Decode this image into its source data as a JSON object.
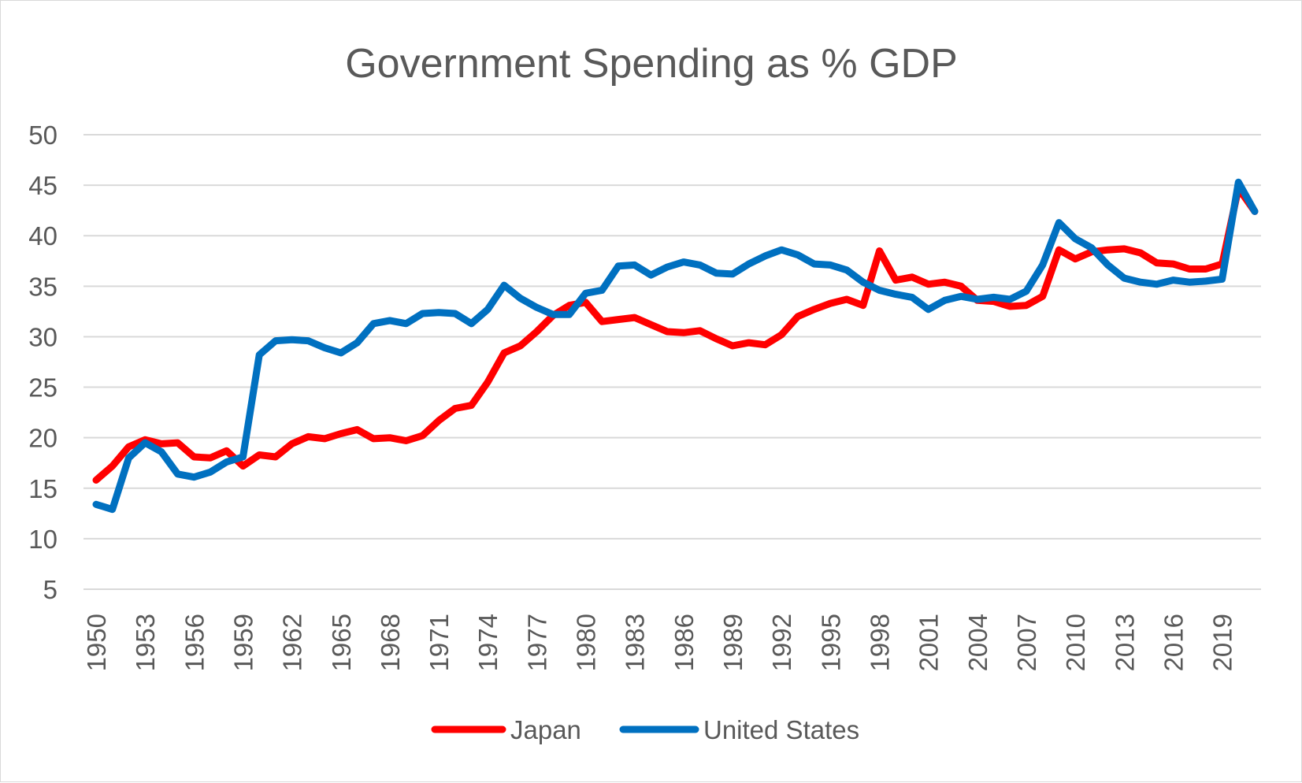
{
  "chart_data": {
    "type": "line",
    "title": "Government Spending as % GDP",
    "xlabel": "",
    "ylabel": "",
    "ylim": [
      5,
      50
    ],
    "y_ticks": [
      5,
      10,
      15,
      20,
      25,
      30,
      35,
      40,
      45,
      50
    ],
    "x_tick_labels": [
      "1950",
      "1953",
      "1956",
      "1959",
      "1962",
      "1965",
      "1968",
      "1971",
      "1974",
      "1977",
      "1980",
      "1983",
      "1986",
      "1989",
      "1992",
      "1995",
      "1998",
      "2001",
      "2004",
      "2007",
      "2010",
      "2013",
      "2016",
      "2019"
    ],
    "grid": "horizontal",
    "legend_position": "bottom",
    "x": [
      1950,
      1951,
      1952,
      1953,
      1954,
      1955,
      1956,
      1957,
      1958,
      1959,
      1960,
      1961,
      1962,
      1963,
      1964,
      1965,
      1966,
      1967,
      1968,
      1969,
      1970,
      1971,
      1972,
      1973,
      1974,
      1975,
      1976,
      1977,
      1978,
      1979,
      1980,
      1981,
      1982,
      1983,
      1984,
      1985,
      1986,
      1987,
      1988,
      1989,
      1990,
      1991,
      1992,
      1993,
      1994,
      1995,
      1996,
      1997,
      1998,
      1999,
      2000,
      2001,
      2002,
      2003,
      2004,
      2005,
      2006,
      2007,
      2008,
      2009,
      2010,
      2011,
      2012,
      2013,
      2014,
      2015,
      2016,
      2017,
      2018,
      2019,
      2020,
      2021
    ],
    "series": [
      {
        "name": "Japan",
        "color": "#ff0000",
        "values": [
          15.8,
          17.2,
          19.1,
          19.8,
          19.4,
          19.5,
          18.1,
          18.0,
          18.7,
          17.2,
          18.3,
          18.1,
          19.4,
          20.1,
          19.9,
          20.4,
          20.8,
          19.9,
          20.0,
          19.7,
          20.2,
          21.7,
          22.9,
          23.2,
          25.5,
          28.4,
          29.1,
          30.5,
          32.1,
          33.1,
          33.4,
          31.5,
          31.7,
          31.9,
          31.2,
          30.5,
          30.4,
          30.6,
          29.8,
          29.1,
          29.4,
          29.2,
          30.2,
          32.0,
          32.7,
          33.3,
          33.7,
          33.1,
          38.5,
          35.6,
          35.9,
          35.2,
          35.4,
          35.0,
          33.6,
          33.5,
          33.0,
          33.1,
          34.0,
          38.6,
          37.7,
          38.4,
          38.6,
          38.7,
          38.3,
          37.3,
          37.2,
          36.7,
          36.7,
          37.2,
          44.7,
          42.4
        ]
      },
      {
        "name": "United States",
        "color": "#0070c0",
        "values": [
          13.4,
          12.9,
          18.0,
          19.5,
          18.6,
          16.4,
          16.1,
          16.6,
          17.6,
          18.1,
          28.2,
          29.6,
          29.7,
          29.6,
          28.9,
          28.4,
          29.4,
          31.3,
          31.6,
          31.3,
          32.3,
          32.4,
          32.3,
          31.3,
          32.7,
          35.1,
          33.8,
          32.9,
          32.2,
          32.2,
          34.3,
          34.6,
          37.0,
          37.1,
          36.1,
          36.9,
          37.4,
          37.1,
          36.3,
          36.2,
          37.2,
          38.0,
          38.6,
          38.1,
          37.2,
          37.1,
          36.6,
          35.4,
          34.6,
          34.2,
          33.9,
          32.7,
          33.6,
          34.0,
          33.7,
          33.9,
          33.7,
          34.5,
          37.1,
          41.3,
          39.7,
          38.8,
          37.1,
          35.8,
          35.4,
          35.2,
          35.6,
          35.4,
          35.5,
          35.7,
          45.3,
          42.4
        ]
      }
    ]
  }
}
